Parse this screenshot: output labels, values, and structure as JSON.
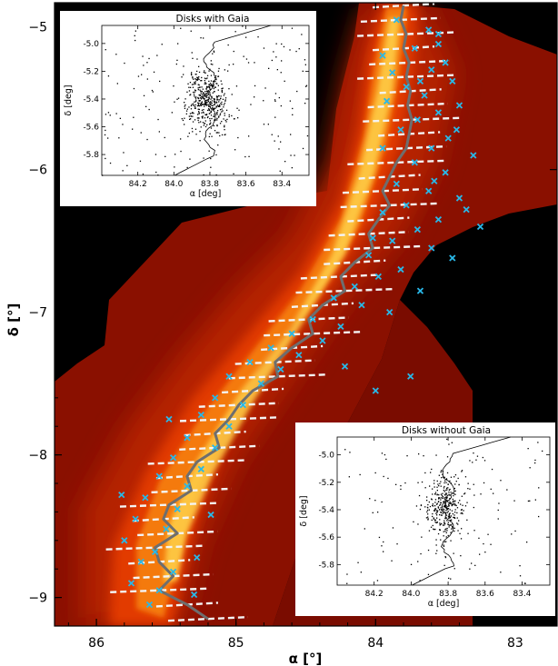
{
  "chart_data": [
    {
      "type": "scatter",
      "subtype": "image-map-with-overlay",
      "xlabel": "α [°]",
      "ylabel": "δ [°]",
      "xlim": [
        86.3,
        82.7
      ],
      "ylim": [
        -9.2,
        -4.83
      ],
      "x_ticks": [
        86,
        85,
        84,
        83
      ],
      "y_ticks": [
        -5,
        -6,
        -7,
        -8,
        -9
      ],
      "x_tick_labels": [
        "86",
        "85",
        "84",
        "83"
      ],
      "y_tick_labels": [
        "−5",
        "−6",
        "−7",
        "−8",
        "−9"
      ],
      "background": "Orion A infrared dust emission map (red/orange/yellow colormap)",
      "colors": {
        "markers": "#29b8e8",
        "filament_line": "#6e6e6e",
        "dashes": "#f4f4f4",
        "map_low": "#7a0a00",
        "map_high": "#fff3a0"
      },
      "series": [
        {
          "marker": "x",
          "points": [
            [
              83.85,
              -4.95
            ],
            [
              83.62,
              -5.02
            ],
            [
              83.55,
              -5.12
            ],
            [
              83.72,
              -5.15
            ],
            [
              83.95,
              -5.2
            ],
            [
              83.5,
              -5.25
            ],
            [
              83.6,
              -5.3
            ],
            [
              83.45,
              -5.38
            ],
            [
              83.88,
              -5.32
            ],
            [
              83.78,
              -5.42
            ],
            [
              83.65,
              -5.48
            ],
            [
              83.92,
              -5.52
            ],
            [
              83.4,
              -5.55
            ],
            [
              83.55,
              -5.6
            ],
            [
              83.7,
              -5.65
            ],
            [
              83.82,
              -5.72
            ],
            [
              83.48,
              -5.78
            ],
            [
              83.6,
              -5.85
            ],
            [
              83.95,
              -5.85
            ],
            [
              83.3,
              -5.9
            ],
            [
              83.72,
              -5.95
            ],
            [
              83.5,
              -6.02
            ],
            [
              83.85,
              -6.1
            ],
            [
              83.62,
              -6.15
            ],
            [
              83.4,
              -6.2
            ],
            [
              83.78,
              -6.25
            ],
            [
              83.95,
              -6.3
            ],
            [
              83.55,
              -6.35
            ],
            [
              83.25,
              -6.4
            ],
            [
              83.7,
              -6.42
            ],
            [
              83.88,
              -6.5
            ],
            [
              83.6,
              -6.55
            ],
            [
              84.05,
              -6.6
            ],
            [
              83.45,
              -6.62
            ],
            [
              83.82,
              -6.7
            ],
            [
              83.98,
              -6.75
            ],
            [
              84.15,
              -6.82
            ],
            [
              83.68,
              -6.85
            ],
            [
              84.3,
              -6.9
            ],
            [
              84.1,
              -6.95
            ],
            [
              83.9,
              -7.0
            ],
            [
              84.45,
              -7.05
            ],
            [
              84.25,
              -7.1
            ],
            [
              84.6,
              -7.15
            ],
            [
              84.38,
              -7.2
            ],
            [
              84.75,
              -7.25
            ],
            [
              84.55,
              -7.3
            ],
            [
              84.9,
              -7.35
            ],
            [
              84.68,
              -7.4
            ],
            [
              85.05,
              -7.45
            ],
            [
              84.82,
              -7.5
            ],
            [
              83.75,
              -7.45
            ],
            [
              84.0,
              -7.55
            ],
            [
              85.15,
              -7.6
            ],
            [
              84.95,
              -7.65
            ],
            [
              85.25,
              -7.72
            ],
            [
              85.05,
              -7.8
            ],
            [
              85.35,
              -7.88
            ],
            [
              85.15,
              -7.95
            ],
            [
              85.45,
              -8.02
            ],
            [
              85.25,
              -8.1
            ],
            [
              85.55,
              -8.15
            ],
            [
              85.35,
              -8.22
            ],
            [
              85.65,
              -8.3
            ],
            [
              85.42,
              -8.38
            ],
            [
              85.72,
              -8.45
            ],
            [
              85.5,
              -8.52
            ],
            [
              85.8,
              -8.6
            ],
            [
              85.58,
              -8.68
            ],
            [
              85.68,
              -8.75
            ],
            [
              85.45,
              -8.82
            ],
            [
              85.75,
              -8.9
            ],
            [
              85.55,
              -8.95
            ],
            [
              85.3,
              -8.98
            ],
            [
              85.62,
              -9.05
            ],
            [
              83.55,
              -5.05
            ],
            [
              83.68,
              -5.38
            ],
            [
              83.42,
              -5.72
            ],
            [
              83.58,
              -6.08
            ],
            [
              83.35,
              -6.28
            ],
            [
              84.02,
              -6.48
            ],
            [
              84.22,
              -7.38
            ],
            [
              85.48,
              -7.75
            ],
            [
              85.18,
              -8.42
            ],
            [
              85.82,
              -8.28
            ],
            [
              85.28,
              -8.72
            ]
          ]
        }
      ],
      "filament_spine": [
        [
          83.8,
          -4.85
        ],
        [
          83.82,
          -4.95
        ],
        [
          83.78,
          -5.05
        ],
        [
          83.8,
          -5.15
        ],
        [
          83.76,
          -5.25
        ],
        [
          83.78,
          -5.35
        ],
        [
          83.75,
          -5.45
        ],
        [
          83.77,
          -5.55
        ],
        [
          83.74,
          -5.65
        ],
        [
          83.76,
          -5.75
        ],
        [
          83.78,
          -5.85
        ],
        [
          83.85,
          -5.95
        ],
        [
          83.9,
          -6.05
        ],
        [
          83.95,
          -6.15
        ],
        [
          83.9,
          -6.25
        ],
        [
          83.98,
          -6.35
        ],
        [
          84.05,
          -6.45
        ],
        [
          84.02,
          -6.55
        ],
        [
          84.15,
          -6.65
        ],
        [
          84.25,
          -6.75
        ],
        [
          84.22,
          -6.85
        ],
        [
          84.38,
          -6.95
        ],
        [
          84.48,
          -7.05
        ],
        [
          84.45,
          -7.15
        ],
        [
          84.6,
          -7.25
        ],
        [
          84.72,
          -7.35
        ],
        [
          84.7,
          -7.45
        ],
        [
          84.88,
          -7.55
        ],
        [
          84.98,
          -7.65
        ],
        [
          85.05,
          -7.75
        ],
        [
          85.15,
          -7.85
        ],
        [
          85.12,
          -7.95
        ],
        [
          85.28,
          -8.05
        ],
        [
          85.35,
          -8.15
        ],
        [
          85.32,
          -8.25
        ],
        [
          85.48,
          -8.35
        ],
        [
          85.52,
          -8.45
        ],
        [
          85.42,
          -8.55
        ],
        [
          85.58,
          -8.65
        ],
        [
          85.55,
          -8.75
        ],
        [
          85.45,
          -8.85
        ],
        [
          85.55,
          -8.95
        ],
        [
          85.35,
          -9.05
        ],
        [
          85.2,
          -9.15
        ]
      ]
    },
    {
      "type": "scatter",
      "title": "Disks with Gaia",
      "xlabel": "α [deg]",
      "ylabel": "δ [deg]",
      "xlim": [
        84.4,
        83.25
      ],
      "ylim": [
        -5.95,
        -4.87
      ],
      "x_ticks": [
        84.2,
        84.0,
        83.8,
        83.6,
        83.4
      ],
      "y_ticks": [
        -5.0,
        -5.2,
        -5.4,
        -5.6,
        -5.8
      ],
      "x_tick_labels": [
        "84.2",
        "84.0",
        "83.8",
        "83.6",
        "83.4"
      ],
      "y_tick_labels": [
        "-5.0",
        "-5.2",
        "-5.4",
        "-5.6",
        "-5.8"
      ],
      "point_count_estimate": 600,
      "distribution": {
        "center": [
          83.82,
          -5.4
        ],
        "spread_x": 0.12,
        "spread_y": 0.22
      }
    },
    {
      "type": "scatter",
      "title": "Disks without Gaia",
      "xlabel": "α [deg]",
      "ylabel": "δ [deg]",
      "xlim": [
        84.4,
        83.25
      ],
      "ylim": [
        -5.95,
        -4.87
      ],
      "x_ticks": [
        84.2,
        84.0,
        83.8,
        83.6,
        83.4
      ],
      "y_ticks": [
        -5.0,
        -5.2,
        -5.4,
        -5.6,
        -5.8
      ],
      "x_tick_labels": [
        "84.2",
        "84.0",
        "83.8",
        "83.6",
        "83.4"
      ],
      "y_tick_labels": [
        "-5.0",
        "-5.2",
        "-5.4",
        "-5.6",
        "-5.8"
      ],
      "point_count_estimate": 450,
      "distribution": {
        "center": [
          83.82,
          -5.38
        ],
        "spread_x": 0.11,
        "spread_y": 0.22
      }
    }
  ]
}
